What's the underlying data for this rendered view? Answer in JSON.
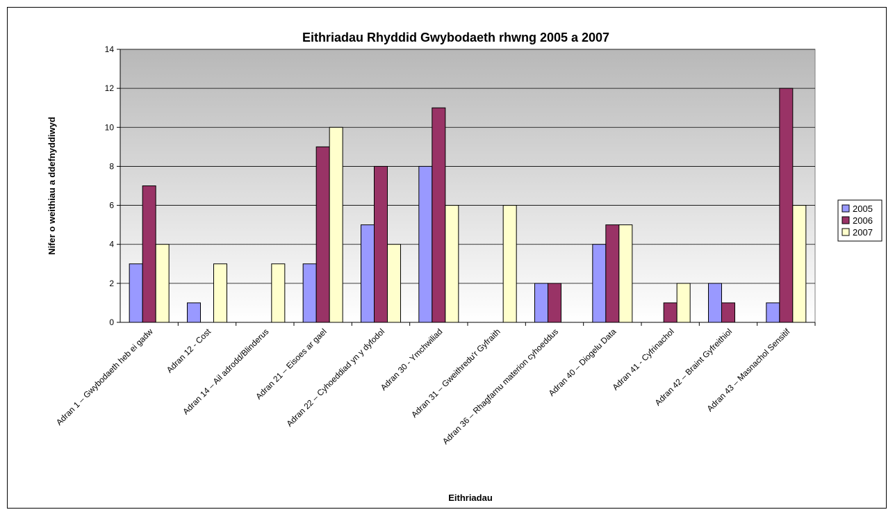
{
  "chart_data": {
    "type": "bar",
    "title": "Eithriadau Rhyddid Gwybodaeth rhwng 2005 a 2007",
    "xlabel": "Eithriadau",
    "ylabel": "Nifer o weithiau a ddefnyddiwyd",
    "ylim": [
      0,
      14
    ],
    "yticks": [
      "0",
      "2",
      "4",
      "6",
      "8",
      "10",
      "12",
      "14"
    ],
    "grid": true,
    "legend_position": "right",
    "categories": [
      "Adran 1 – Gwybodaeth heb ei gadw",
      "Adran 12 - Cost",
      "Adran 14 – Ail adrodd/Blinderus",
      "Adran 21 – Eisoes ar gael",
      "Adran 22 – Cyhoeddiad yn y dyfodol",
      "Adran 30 - Ymchwiliad",
      "Adran 31 – Gweithredu'r Gyfraith",
      "Adran 36 – Rhagfarnu materion cyhoeddus",
      "Adran 40 – Diogelu Data",
      "Adran 41 - Cyfrinachol",
      "Adran 42 – Braint Gyfreithiol",
      "Adran 43 – Masnachol Sensitif"
    ],
    "series": [
      {
        "name": "2005",
        "color": "#9999ff",
        "values": [
          3,
          1,
          0,
          3,
          5,
          8,
          0,
          2,
          4,
          0,
          2,
          1
        ]
      },
      {
        "name": "2006",
        "color": "#993366",
        "values": [
          7,
          0,
          0,
          9,
          8,
          11,
          0,
          2,
          5,
          1,
          1,
          12
        ]
      },
      {
        "name": "2007",
        "color": "#ffffcc",
        "values": [
          4,
          3,
          3,
          10,
          4,
          6,
          6,
          0,
          5,
          2,
          0,
          6
        ]
      }
    ]
  }
}
